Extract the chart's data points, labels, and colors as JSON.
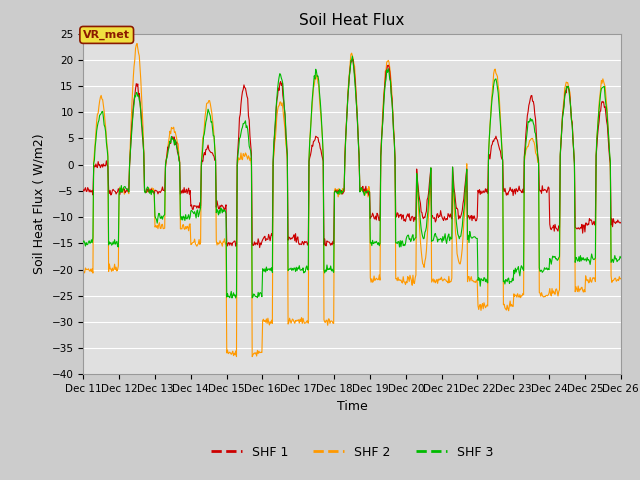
{
  "title": "Soil Heat Flux",
  "ylabel": "Soil Heat Flux ( W/m2)",
  "xlabel": "Time",
  "ylim": [
    -40,
    25
  ],
  "yticks": [
    -40,
    -35,
    -30,
    -25,
    -20,
    -15,
    -10,
    -5,
    0,
    5,
    10,
    15,
    20,
    25
  ],
  "color_shf1": "#cc0000",
  "color_shf2": "#ff9900",
  "color_shf3": "#00bb00",
  "legend_labels": [
    "SHF 1",
    "SHF 2",
    "SHF 3"
  ],
  "vr_met_label": "VR_met",
  "fig_bg_color": "#cccccc",
  "plot_bg_color": "#e0e0e0",
  "title_fontsize": 11,
  "label_fontsize": 9,
  "tick_fontsize": 7.5,
  "xtick_days": [
    11,
    12,
    13,
    14,
    15,
    16,
    17,
    18,
    19,
    20,
    21,
    22,
    23,
    24,
    25,
    26
  ],
  "day_params": [
    [
      0,
      -5,
      13,
      -20,
      10,
      -15
    ],
    [
      15,
      -5,
      23,
      -5,
      14,
      -5
    ],
    [
      5,
      -5,
      7,
      -12,
      5,
      -10
    ],
    [
      3,
      -8,
      12,
      -15,
      10,
      -9
    ],
    [
      15,
      -15,
      2,
      -36,
      8,
      -25
    ],
    [
      16,
      -14,
      12,
      -30,
      17,
      -20
    ],
    [
      5,
      -15,
      17,
      -30,
      18,
      -20
    ],
    [
      20,
      -5,
      21,
      -5,
      20,
      -5
    ],
    [
      19,
      -10,
      20,
      -22,
      18,
      -15
    ],
    [
      -10,
      -10,
      -19,
      -22,
      -14,
      -14
    ],
    [
      -10,
      -10,
      -19,
      -22,
      -14,
      -14
    ],
    [
      5,
      -5,
      18,
      -27,
      16,
      -22
    ],
    [
      13,
      -5,
      5,
      -25,
      9,
      -20
    ],
    [
      15,
      -12,
      16,
      -24,
      15,
      -18
    ],
    [
      12,
      -11,
      16,
      -22,
      15,
      -18
    ]
  ]
}
